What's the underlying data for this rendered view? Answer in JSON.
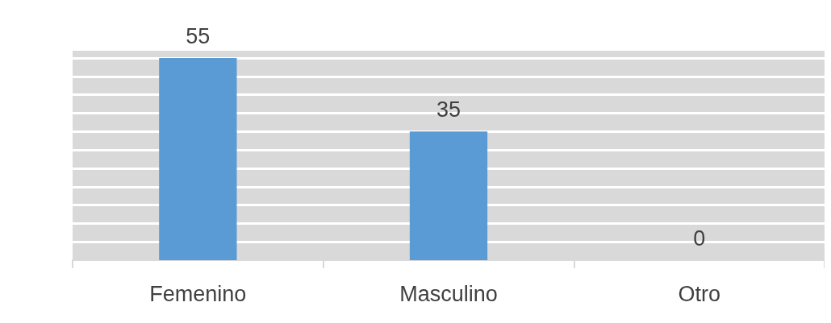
{
  "chart_data": {
    "type": "bar",
    "categories": [
      "Femenino",
      "Masculino",
      "Otro"
    ],
    "values": [
      55,
      35,
      0
    ],
    "color": "#5b9bd5",
    "data_labels": true,
    "ylim": [
      0,
      57
    ],
    "yticks": [
      {
        "value": 0,
        "label": null
      },
      {
        "value": 5,
        "label": null
      },
      {
        "value": 10,
        "label": null
      },
      {
        "value": 15,
        "label": null
      },
      {
        "value": 20,
        "label": null
      },
      {
        "value": 25,
        "label": null
      },
      {
        "value": 30,
        "label": null
      },
      {
        "value": 35,
        "label": null
      },
      {
        "value": 40,
        "label": null
      },
      {
        "value": 45,
        "label": null
      },
      {
        "value": 50,
        "label": null
      },
      {
        "value": 55,
        "label": null
      }
    ],
    "grid": "y",
    "tick_labels": "x"
  }
}
